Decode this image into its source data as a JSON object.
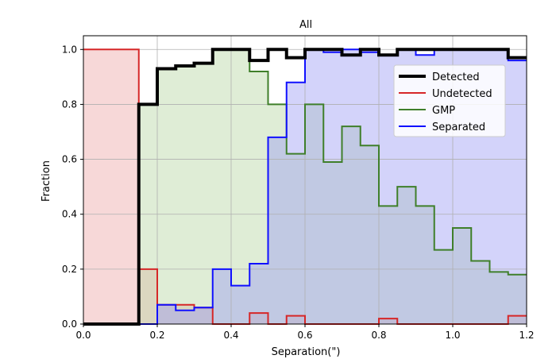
{
  "chart_data": {
    "type": "step-histogram",
    "title": "All",
    "xlabel": "Separation(\")",
    "ylabel": "Fraction",
    "xlim": [
      0.0,
      1.2
    ],
    "ylim": [
      0.0,
      1.05
    ],
    "xticks": [
      "0.0",
      "0.2",
      "0.4",
      "0.6",
      "0.8",
      "1.0",
      "1.2"
    ],
    "yticks": [
      "0.0",
      "0.2",
      "0.4",
      "0.6",
      "0.8",
      "1.0"
    ],
    "grid": true,
    "legend": "upper right",
    "bin_edges": [
      0.0,
      0.05,
      0.1,
      0.15,
      0.2,
      0.25,
      0.3,
      0.35,
      0.4,
      0.45,
      0.5,
      0.55,
      0.6,
      0.65,
      0.7,
      0.75,
      0.8,
      0.85,
      0.9,
      0.95,
      1.0,
      1.05,
      1.1,
      1.15,
      1.2
    ],
    "series": [
      {
        "name": "Undetected",
        "color": "#d62728",
        "fill": "#f4c7c7",
        "fill_opacity": 0.7,
        "line_width": 2,
        "values": [
          1.0,
          1.0,
          1.0,
          0.2,
          0.07,
          0.07,
          0.06,
          0.0,
          0.0,
          0.04,
          0.0,
          0.03,
          0.0,
          0.0,
          0.0,
          0.0,
          0.02,
          0.0,
          0.0,
          0.0,
          0.0,
          0.0,
          0.0,
          0.03
        ]
      },
      {
        "name": "GMP",
        "color": "#3f7f2a",
        "fill": "#b9d6a4",
        "fill_opacity": 0.45,
        "line_width": 2,
        "values": [
          0.0,
          0.0,
          0.0,
          0.8,
          0.93,
          0.94,
          0.95,
          1.0,
          1.0,
          0.92,
          0.8,
          0.62,
          0.8,
          0.59,
          0.72,
          0.65,
          0.43,
          0.5,
          0.43,
          0.27,
          0.35,
          0.23,
          0.19,
          0.18
        ]
      },
      {
        "name": "Separated",
        "color": "#1010ff",
        "fill": "#9e9ef5",
        "fill_opacity": 0.45,
        "line_width": 2,
        "values": [
          0.0,
          0.0,
          0.0,
          0.0,
          0.07,
          0.05,
          0.06,
          0.2,
          0.14,
          0.22,
          0.68,
          0.88,
          1.0,
          0.99,
          1.0,
          0.99,
          0.98,
          1.0,
          0.98,
          1.0,
          1.0,
          1.0,
          1.0,
          0.96
        ]
      },
      {
        "name": "Detected",
        "color": "#000000",
        "fill": "none",
        "fill_opacity": 0,
        "line_width": 4,
        "values": [
          0.0,
          0.0,
          0.0,
          0.8,
          0.93,
          0.94,
          0.95,
          1.0,
          1.0,
          0.96,
          1.0,
          0.97,
          1.0,
          1.0,
          0.98,
          1.0,
          0.98,
          1.0,
          1.0,
          1.0,
          1.0,
          1.0,
          1.0,
          0.97
        ]
      }
    ],
    "legend_order": [
      "Detected",
      "Undetected",
      "GMP",
      "Separated"
    ]
  }
}
